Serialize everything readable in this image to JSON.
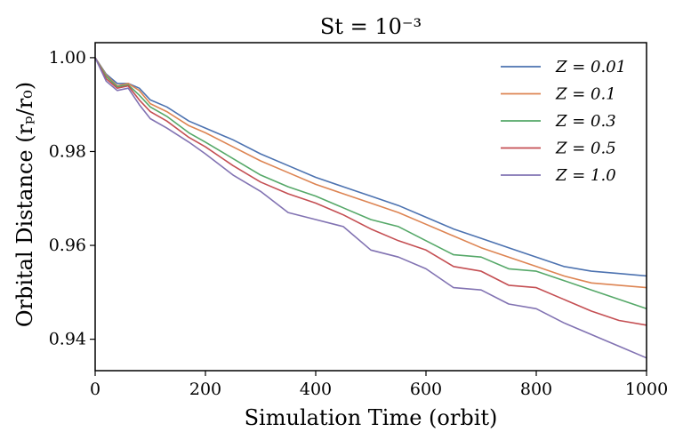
{
  "chart_data": {
    "type": "line",
    "title": "St = 10⁻³",
    "xlabel": "Simulation Time (orbit)",
    "ylabel": "Orbital Distance (rₚ/r₀)",
    "xlim": [
      0,
      1000
    ],
    "ylim": [
      0.9333,
      1.0032
    ],
    "xticks": [
      0,
      200,
      400,
      600,
      800,
      1000
    ],
    "yticks": [
      0.94,
      0.96,
      0.98,
      1.0
    ],
    "xtick_labels": [
      "0",
      "200",
      "400",
      "600",
      "800",
      "1000"
    ],
    "ytick_labels": [
      "0.94",
      "0.96",
      "0.98",
      "1.00"
    ],
    "grid": false,
    "legend_position": "top-right",
    "series": [
      {
        "name": "Z = 0.01",
        "color": "#4c72b0",
        "x": [
          0,
          20,
          40,
          60,
          80,
          100,
          130,
          170,
          200,
          250,
          300,
          350,
          400,
          450,
          500,
          550,
          600,
          650,
          700,
          750,
          800,
          850,
          900,
          950,
          1000
        ],
        "y": [
          1.0,
          0.9965,
          0.9945,
          0.9945,
          0.9935,
          0.991,
          0.9895,
          0.9865,
          0.985,
          0.9825,
          0.9795,
          0.977,
          0.9745,
          0.9725,
          0.9705,
          0.9685,
          0.966,
          0.9635,
          0.9615,
          0.9595,
          0.9575,
          0.9555,
          0.9545,
          0.954,
          0.9535
        ]
      },
      {
        "name": "Z = 0.1",
        "color": "#dd8452",
        "x": [
          0,
          20,
          40,
          60,
          80,
          100,
          130,
          170,
          200,
          250,
          300,
          350,
          400,
          450,
          500,
          550,
          600,
          650,
          700,
          750,
          800,
          850,
          900,
          950,
          1000
        ],
        "y": [
          1.0,
          0.9963,
          0.994,
          0.9945,
          0.993,
          0.9902,
          0.9885,
          0.9855,
          0.984,
          0.981,
          0.978,
          0.9755,
          0.973,
          0.971,
          0.969,
          0.967,
          0.9645,
          0.962,
          0.9595,
          0.9575,
          0.9555,
          0.9535,
          0.952,
          0.9515,
          0.951
        ]
      },
      {
        "name": "Z = 0.3",
        "color": "#55a868",
        "x": [
          0,
          20,
          40,
          60,
          80,
          100,
          130,
          170,
          200,
          250,
          300,
          350,
          400,
          450,
          500,
          550,
          600,
          650,
          700,
          750,
          800,
          850,
          900,
          950,
          1000
        ],
        "y": [
          1.0,
          0.996,
          0.9938,
          0.9942,
          0.992,
          0.9895,
          0.9875,
          0.984,
          0.982,
          0.9785,
          0.975,
          0.9725,
          0.9705,
          0.968,
          0.9655,
          0.964,
          0.961,
          0.958,
          0.9575,
          0.955,
          0.9545,
          0.9525,
          0.9505,
          0.9485,
          0.9465
        ]
      },
      {
        "name": "Z = 0.5",
        "color": "#c44e52",
        "x": [
          0,
          20,
          40,
          60,
          80,
          100,
          130,
          170,
          200,
          250,
          300,
          350,
          400,
          450,
          500,
          550,
          600,
          650,
          700,
          750,
          800,
          850,
          900,
          950,
          1000
        ],
        "y": [
          1.0,
          0.9955,
          0.9935,
          0.994,
          0.991,
          0.9885,
          0.9865,
          0.983,
          0.981,
          0.977,
          0.9735,
          0.971,
          0.969,
          0.9665,
          0.9635,
          0.961,
          0.959,
          0.9555,
          0.9545,
          0.9515,
          0.951,
          0.9485,
          0.946,
          0.944,
          0.943
        ]
      },
      {
        "name": "Z = 1.0",
        "color": "#8172b2",
        "x": [
          0,
          20,
          40,
          60,
          80,
          100,
          130,
          170,
          200,
          250,
          300,
          350,
          400,
          450,
          500,
          550,
          600,
          650,
          700,
          750,
          800,
          850,
          900,
          950,
          1000
        ],
        "y": [
          1.0,
          0.995,
          0.993,
          0.9935,
          0.99,
          0.987,
          0.985,
          0.982,
          0.9795,
          0.975,
          0.9715,
          0.967,
          0.9655,
          0.964,
          0.959,
          0.9575,
          0.955,
          0.951,
          0.9505,
          0.9475,
          0.9465,
          0.9435,
          0.941,
          0.9385,
          0.936
        ]
      }
    ]
  }
}
